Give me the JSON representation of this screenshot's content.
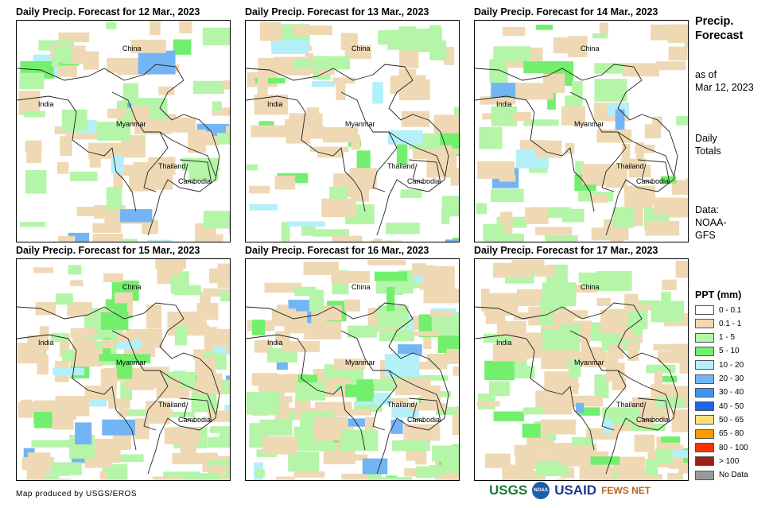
{
  "panels": [
    {
      "title": "Daily Precip. Forecast for 12 Mar., 2023"
    },
    {
      "title": "Daily Precip. Forecast for 13 Mar., 2023"
    },
    {
      "title": "Daily Precip. Forecast for 14 Mar., 2023"
    },
    {
      "title": "Daily Precip. Forecast for 15 Mar., 2023"
    },
    {
      "title": "Daily Precip. Forecast for 16 Mar., 2023"
    },
    {
      "title": "Daily Precip. Forecast for 17 Mar., 2023"
    }
  ],
  "labels": {
    "china": "China",
    "india": "India",
    "myanmar": "Myanmar",
    "thailand": "Thailand",
    "cambodia": "Cambodia"
  },
  "side": {
    "title1": "Precip.",
    "title2": "Forecast",
    "asof1": "as of",
    "asof2": "Mar 12, 2023",
    "daily1": "Daily",
    "daily2": "Totals",
    "data1": "Data:",
    "data2": "NOAA-",
    "data3": "GFS"
  },
  "legend": {
    "title": "PPT (mm)",
    "items": [
      {
        "label": "0 - 0.1",
        "color": "#ffffff"
      },
      {
        "label": "0.1 - 1",
        "color": "#efd9b4"
      },
      {
        "label": "1 - 5",
        "color": "#b4f5a8"
      },
      {
        "label": "5 - 10",
        "color": "#73ef6e"
      },
      {
        "label": "10 - 20",
        "color": "#b4f0f8"
      },
      {
        "label": "20 - 30",
        "color": "#73b4f5"
      },
      {
        "label": "30 - 40",
        "color": "#3c96f0"
      },
      {
        "label": "40 - 50",
        "color": "#1e64e6"
      },
      {
        "label": "50 - 65",
        "color": "#fce17b"
      },
      {
        "label": "65 - 80",
        "color": "#ff9900"
      },
      {
        "label": "80 - 100",
        "color": "#ff3300"
      },
      {
        "label": "> 100",
        "color": "#a01e1e"
      },
      {
        "label": "No Data",
        "color": "#999999"
      }
    ]
  },
  "footer": {
    "credit": "Map produced by USGS/EROS",
    "logos": [
      "USGS",
      "NOAA",
      "USAID",
      "FEWS NET"
    ]
  }
}
